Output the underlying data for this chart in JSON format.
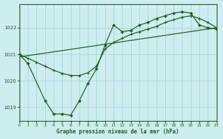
{
  "title": "Graphe pression niveau de la mer (hPa)",
  "bg_color": "#cceef0",
  "grid_color": "#a8d8dc",
  "line_color": "#1a5c1a",
  "x_min": 0,
  "x_max": 23,
  "y_min": 1018.5,
  "y_max": 1022.9,
  "yticks": [
    1019,
    1020,
    1021,
    1022
  ],
  "xticks": [
    0,
    1,
    2,
    3,
    4,
    5,
    6,
    7,
    8,
    9,
    10,
    11,
    12,
    13,
    14,
    15,
    16,
    17,
    18,
    19,
    20,
    21,
    22,
    23
  ],
  "series1_x": [
    0,
    1,
    3,
    4,
    5,
    6,
    7,
    8,
    9,
    10,
    11,
    12,
    13,
    14,
    15,
    16,
    17,
    18,
    19,
    20,
    21,
    22,
    23
  ],
  "series1_y": [
    1021.0,
    1020.65,
    1019.25,
    1018.75,
    1018.75,
    1018.7,
    1019.25,
    1019.9,
    1020.45,
    1021.35,
    1022.1,
    1021.85,
    1021.9,
    1022.1,
    1022.2,
    1022.35,
    1022.45,
    1022.55,
    1022.6,
    1022.55,
    1022.1,
    1022.0,
    1021.95
  ],
  "series2_x": [
    0,
    1,
    2,
    3,
    4,
    5,
    6,
    7,
    8,
    9,
    10,
    11,
    12,
    13,
    14,
    15,
    16,
    17,
    18,
    19,
    20,
    21,
    22,
    23
  ],
  "series2_y": [
    1021.0,
    1020.85,
    1020.7,
    1020.55,
    1020.4,
    1020.28,
    1020.2,
    1020.2,
    1020.3,
    1020.55,
    1021.2,
    1021.45,
    1021.6,
    1021.75,
    1021.85,
    1021.95,
    1022.05,
    1022.2,
    1022.3,
    1022.4,
    1022.45,
    1022.35,
    1022.2,
    1022.0
  ],
  "series3_x": [
    0,
    23
  ],
  "series3_y": [
    1020.9,
    1022.0
  ]
}
